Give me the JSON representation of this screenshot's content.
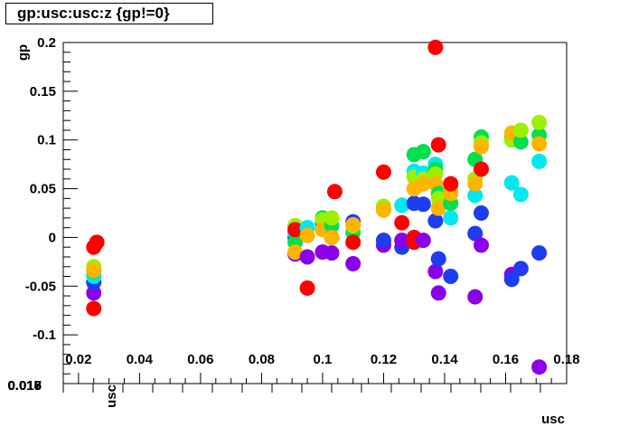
{
  "title": "gp:usc:usc:z {gp!=0}",
  "chart_data": {
    "type": "scatter",
    "title": "gp:usc:usc:z {gp!=0}",
    "ylabel": "gp",
    "xlabel": "usc",
    "ylim": [
      -0.15,
      0.2
    ],
    "xlim": [
      0.015,
      0.18
    ],
    "y_ticks": [
      "0.2",
      "0.15",
      "0.1",
      "0.05",
      "0",
      "-0.05",
      "-0.1"
    ],
    "x_ticks": [
      "0.02",
      "0.04",
      "0.06",
      "0.08",
      "0.1",
      "0.12",
      "0.14",
      "0.16",
      "0.18"
    ],
    "lower_axis_label": "usc",
    "lower_axis_ticks": [
      "0.015",
      "0.016",
      "0.017",
      "0.018"
    ],
    "color_scale": [
      "#8a00e8",
      "#1e3cf0",
      "#00e8f0",
      "#00e050",
      "#9cf000",
      "#ffb400",
      "#ff0000"
    ],
    "points": [
      {
        "x": 0.025,
        "y": -0.057,
        "c": 0
      },
      {
        "x": 0.025,
        "y": -0.046,
        "c": 1
      },
      {
        "x": 0.025,
        "y": -0.04,
        "c": 2
      },
      {
        "x": 0.025,
        "y": -0.035,
        "c": 3
      },
      {
        "x": 0.025,
        "y": -0.03,
        "c": 4
      },
      {
        "x": 0.025,
        "y": -0.034,
        "c": 5
      },
      {
        "x": 0.025,
        "y": -0.073,
        "c": 6
      },
      {
        "x": 0.025,
        "y": -0.01,
        "c": 6
      },
      {
        "x": 0.026,
        "y": -0.005,
        "c": 6
      },
      {
        "x": 0.091,
        "y": -0.017,
        "c": 0
      },
      {
        "x": 0.091,
        "y": 0.0,
        "c": 1
      },
      {
        "x": 0.091,
        "y": 0.005,
        "c": 2
      },
      {
        "x": 0.091,
        "y": -0.005,
        "c": 3
      },
      {
        "x": 0.091,
        "y": 0.012,
        "c": 4
      },
      {
        "x": 0.091,
        "y": -0.015,
        "c": 5
      },
      {
        "x": 0.091,
        "y": 0.008,
        "c": 6
      },
      {
        "x": 0.095,
        "y": -0.02,
        "c": 0
      },
      {
        "x": 0.095,
        "y": 0.01,
        "c": 2
      },
      {
        "x": 0.095,
        "y": 0.002,
        "c": 5
      },
      {
        "x": 0.095,
        "y": -0.052,
        "c": 6
      },
      {
        "x": 0.1,
        "y": -0.015,
        "c": 0
      },
      {
        "x": 0.1,
        "y": 0.015,
        "c": 1
      },
      {
        "x": 0.1,
        "y": 0.02,
        "c": 3
      },
      {
        "x": 0.1,
        "y": 0.018,
        "c": 4
      },
      {
        "x": 0.1,
        "y": 0.008,
        "c": 5
      },
      {
        "x": 0.103,
        "y": -0.016,
        "c": 0
      },
      {
        "x": 0.103,
        "y": 0.0,
        "c": 2
      },
      {
        "x": 0.103,
        "y": 0.012,
        "c": 3
      },
      {
        "x": 0.103,
        "y": 0.02,
        "c": 4
      },
      {
        "x": 0.103,
        "y": 0.0,
        "c": 5
      },
      {
        "x": 0.104,
        "y": 0.047,
        "c": 6
      },
      {
        "x": 0.11,
        "y": -0.027,
        "c": 0
      },
      {
        "x": 0.11,
        "y": 0.016,
        "c": 1
      },
      {
        "x": 0.11,
        "y": 0.005,
        "c": 3
      },
      {
        "x": 0.11,
        "y": 0.012,
        "c": 4
      },
      {
        "x": 0.11,
        "y": 0.013,
        "c": 5
      },
      {
        "x": 0.11,
        "y": -0.005,
        "c": 6
      },
      {
        "x": 0.12,
        "y": -0.008,
        "c": 0
      },
      {
        "x": 0.12,
        "y": -0.003,
        "c": 1
      },
      {
        "x": 0.12,
        "y": 0.03,
        "c": 3
      },
      {
        "x": 0.12,
        "y": 0.032,
        "c": 4
      },
      {
        "x": 0.12,
        "y": 0.028,
        "c": 5
      },
      {
        "x": 0.12,
        "y": 0.067,
        "c": 6
      },
      {
        "x": 0.126,
        "y": -0.01,
        "c": 1
      },
      {
        "x": 0.126,
        "y": 0.033,
        "c": 2
      },
      {
        "x": 0.126,
        "y": 0.015,
        "c": 6
      },
      {
        "x": 0.126,
        "y": -0.003,
        "c": 0
      },
      {
        "x": 0.13,
        "y": 0.035,
        "c": 1
      },
      {
        "x": 0.13,
        "y": 0.068,
        "c": 2
      },
      {
        "x": 0.13,
        "y": 0.085,
        "c": 3
      },
      {
        "x": 0.13,
        "y": 0.062,
        "c": 4
      },
      {
        "x": 0.13,
        "y": 0.05,
        "c": 5
      },
      {
        "x": 0.13,
        "y": 0.0,
        "c": 6
      },
      {
        "x": 0.13,
        "y": -0.005,
        "c": 6
      },
      {
        "x": 0.133,
        "y": -0.003,
        "c": 0
      },
      {
        "x": 0.133,
        "y": 0.034,
        "c": 1
      },
      {
        "x": 0.133,
        "y": 0.066,
        "c": 2
      },
      {
        "x": 0.133,
        "y": 0.088,
        "c": 3
      },
      {
        "x": 0.133,
        "y": 0.06,
        "c": 4
      },
      {
        "x": 0.133,
        "y": 0.055,
        "c": 5
      },
      {
        "x": 0.137,
        "y": -0.035,
        "c": 0
      },
      {
        "x": 0.137,
        "y": 0.017,
        "c": 1
      },
      {
        "x": 0.137,
        "y": 0.075,
        "c": 2
      },
      {
        "x": 0.137,
        "y": 0.07,
        "c": 3
      },
      {
        "x": 0.137,
        "y": 0.065,
        "c": 4
      },
      {
        "x": 0.137,
        "y": 0.055,
        "c": 5
      },
      {
        "x": 0.137,
        "y": 0.195,
        "c": 6
      },
      {
        "x": 0.138,
        "y": -0.057,
        "c": 0
      },
      {
        "x": 0.138,
        "y": -0.022,
        "c": 1
      },
      {
        "x": 0.138,
        "y": 0.03,
        "c": 2
      },
      {
        "x": 0.138,
        "y": 0.045,
        "c": 3
      },
      {
        "x": 0.138,
        "y": 0.04,
        "c": 4
      },
      {
        "x": 0.138,
        "y": 0.03,
        "c": 5
      },
      {
        "x": 0.138,
        "y": 0.095,
        "c": 6
      },
      {
        "x": 0.142,
        "y": -0.04,
        "c": 1
      },
      {
        "x": 0.142,
        "y": 0.02,
        "c": 2
      },
      {
        "x": 0.142,
        "y": 0.035,
        "c": 3
      },
      {
        "x": 0.142,
        "y": 0.05,
        "c": 4
      },
      {
        "x": 0.142,
        "y": 0.045,
        "c": 5
      },
      {
        "x": 0.142,
        "y": 0.055,
        "c": 6
      },
      {
        "x": 0.15,
        "y": -0.061,
        "c": 0
      },
      {
        "x": 0.15,
        "y": 0.004,
        "c": 1
      },
      {
        "x": 0.15,
        "y": 0.043,
        "c": 2
      },
      {
        "x": 0.15,
        "y": 0.08,
        "c": 3
      },
      {
        "x": 0.15,
        "y": 0.06,
        "c": 4
      },
      {
        "x": 0.15,
        "y": 0.055,
        "c": 5
      },
      {
        "x": 0.152,
        "y": -0.008,
        "c": 0
      },
      {
        "x": 0.152,
        "y": 0.025,
        "c": 1
      },
      {
        "x": 0.152,
        "y": 0.103,
        "c": 3
      },
      {
        "x": 0.152,
        "y": 0.097,
        "c": 4
      },
      {
        "x": 0.152,
        "y": 0.093,
        "c": 5
      },
      {
        "x": 0.152,
        "y": 0.07,
        "c": 6
      },
      {
        "x": 0.162,
        "y": -0.038,
        "c": 0
      },
      {
        "x": 0.162,
        "y": -0.043,
        "c": 1
      },
      {
        "x": 0.162,
        "y": 0.056,
        "c": 2
      },
      {
        "x": 0.162,
        "y": 0.102,
        "c": 3
      },
      {
        "x": 0.162,
        "y": 0.1,
        "c": 4
      },
      {
        "x": 0.162,
        "y": 0.107,
        "c": 5
      },
      {
        "x": 0.165,
        "y": -0.032,
        "c": 1
      },
      {
        "x": 0.165,
        "y": 0.044,
        "c": 2
      },
      {
        "x": 0.165,
        "y": 0.098,
        "c": 3
      },
      {
        "x": 0.165,
        "y": 0.11,
        "c": 4
      },
      {
        "x": 0.171,
        "y": -0.133,
        "c": 0
      },
      {
        "x": 0.171,
        "y": -0.016,
        "c": 1
      },
      {
        "x": 0.171,
        "y": 0.078,
        "c": 2
      },
      {
        "x": 0.171,
        "y": 0.105,
        "c": 3
      },
      {
        "x": 0.171,
        "y": 0.118,
        "c": 4
      },
      {
        "x": 0.171,
        "y": 0.096,
        "c": 5
      }
    ]
  }
}
